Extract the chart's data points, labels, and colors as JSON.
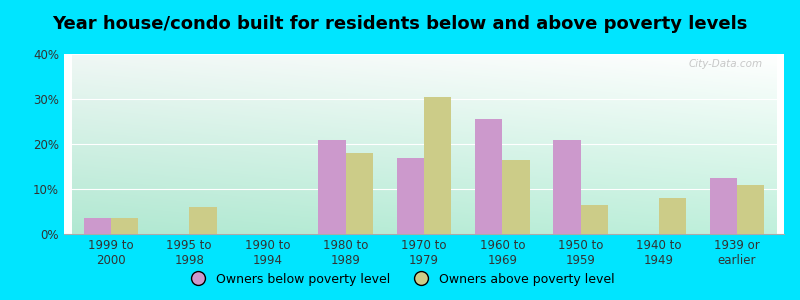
{
  "title": "Year house/condo built for residents below and above poverty levels",
  "categories": [
    "1999 to\n2000",
    "1995 to\n1998",
    "1990 to\n1994",
    "1980 to\n1989",
    "1970 to\n1979",
    "1960 to\n1969",
    "1950 to\n1959",
    "1940 to\n1949",
    "1939 or\nearlier"
  ],
  "below_poverty": [
    3.5,
    0,
    0,
    21,
    17,
    25.5,
    21,
    0,
    12.5
  ],
  "above_poverty": [
    3.5,
    6,
    0,
    18,
    30.5,
    16.5,
    6.5,
    8,
    11
  ],
  "below_color": "#cc99cc",
  "above_color": "#cccc88",
  "background_outer": "#00e5ff",
  "ylim": [
    0,
    40
  ],
  "yticks": [
    0,
    10,
    20,
    30,
    40
  ],
  "bar_width": 0.35,
  "legend_below": "Owners below poverty level",
  "legend_above": "Owners above poverty level",
  "title_fontsize": 13,
  "tick_fontsize": 8.5,
  "legend_fontsize": 9
}
